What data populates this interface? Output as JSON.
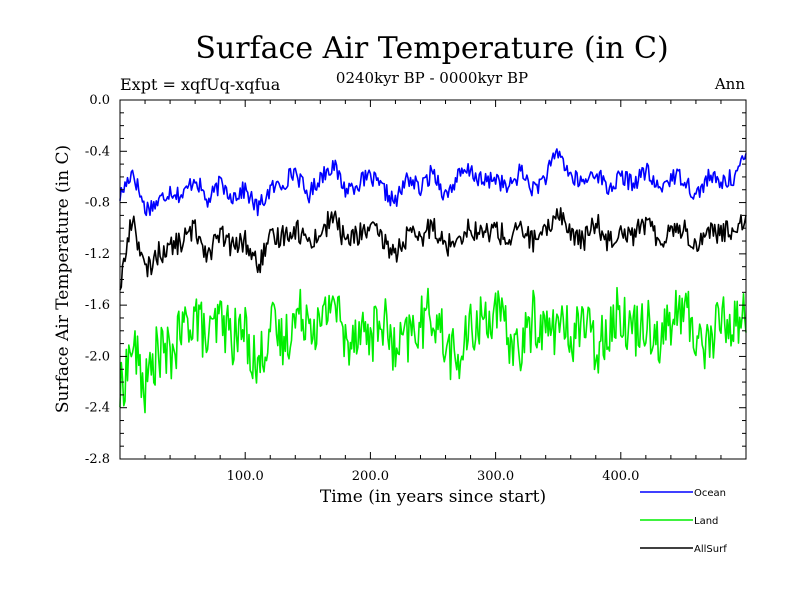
{
  "chart_data": {
    "type": "line",
    "title": "Surface Air Temperature (in C)",
    "subtitle": "0240kyr BP - 0000kyr BP",
    "experiment": "Expt = xqfUq-xqfua",
    "season": "Ann",
    "xlabel": "Time (in years since start)",
    "ylabel": "Surface Air Temperature (in C)",
    "xlim": [
      0,
      500
    ],
    "ylim": [
      -2.8,
      0.0
    ],
    "xticks": [
      100,
      200,
      300,
      400
    ],
    "xtick_labels": [
      "100.0",
      "200.0",
      "300.0",
      "400.0"
    ],
    "yticks": [
      0.0,
      -0.4,
      -0.8,
      -1.2,
      -1.6,
      -2.0,
      -2.4,
      -2.8
    ],
    "ytick_labels": [
      "0.0",
      "-0.4",
      "-0.8",
      "-1.2",
      "-1.6",
      "-2.0",
      "-2.4",
      "-2.8"
    ],
    "legend_position": "bottom-right, outside plot",
    "series": [
      {
        "name": "Ocean",
        "color": "#0000ff",
        "x": [
          0,
          10,
          20,
          30,
          40,
          50,
          60,
          70,
          80,
          90,
          100,
          110,
          120,
          130,
          140,
          150,
          160,
          170,
          180,
          190,
          200,
          210,
          220,
          230,
          240,
          250,
          260,
          270,
          280,
          290,
          300,
          310,
          320,
          330,
          340,
          350,
          360,
          370,
          380,
          390,
          400,
          410,
          420,
          430,
          440,
          450,
          460,
          470,
          480,
          490,
          500
        ],
        "values": [
          -0.75,
          -0.55,
          -0.85,
          -0.8,
          -0.7,
          -0.75,
          -0.6,
          -0.8,
          -0.65,
          -0.75,
          -0.7,
          -0.85,
          -0.7,
          -0.65,
          -0.55,
          -0.75,
          -0.6,
          -0.5,
          -0.7,
          -0.65,
          -0.6,
          -0.7,
          -0.8,
          -0.6,
          -0.7,
          -0.55,
          -0.75,
          -0.6,
          -0.55,
          -0.65,
          -0.6,
          -0.7,
          -0.55,
          -0.7,
          -0.6,
          -0.4,
          -0.6,
          -0.65,
          -0.55,
          -0.7,
          -0.6,
          -0.65,
          -0.55,
          -0.7,
          -0.6,
          -0.6,
          -0.75,
          -0.6,
          -0.65,
          -0.6,
          -0.45
        ]
      },
      {
        "name": "Land",
        "color": "#00ee00",
        "x": [
          0,
          10,
          20,
          30,
          40,
          50,
          60,
          70,
          80,
          90,
          100,
          110,
          120,
          130,
          140,
          150,
          160,
          170,
          180,
          190,
          200,
          210,
          220,
          230,
          240,
          250,
          260,
          270,
          280,
          290,
          300,
          310,
          320,
          330,
          340,
          350,
          360,
          370,
          380,
          390,
          400,
          410,
          420,
          430,
          440,
          450,
          460,
          470,
          480,
          490,
          500
        ],
        "values": [
          -2.3,
          -1.9,
          -2.25,
          -1.95,
          -2.0,
          -1.8,
          -1.65,
          -1.9,
          -1.7,
          -1.85,
          -1.8,
          -2.1,
          -1.75,
          -1.9,
          -1.7,
          -1.65,
          -1.8,
          -1.5,
          -1.9,
          -1.75,
          -1.85,
          -1.7,
          -2.0,
          -1.85,
          -1.75,
          -1.65,
          -1.9,
          -2.05,
          -1.8,
          -1.7,
          -1.65,
          -1.85,
          -1.95,
          -1.7,
          -1.8,
          -1.75,
          -1.85,
          -1.7,
          -1.95,
          -1.75,
          -1.65,
          -1.8,
          -1.7,
          -1.85,
          -1.75,
          -1.6,
          -1.85,
          -1.9,
          -1.7,
          -1.75,
          -1.65
        ]
      },
      {
        "name": "AllSurf",
        "color": "#000000",
        "x": [
          0,
          10,
          20,
          30,
          40,
          50,
          60,
          70,
          80,
          90,
          100,
          110,
          120,
          130,
          140,
          150,
          160,
          170,
          180,
          190,
          200,
          210,
          220,
          230,
          240,
          250,
          260,
          270,
          280,
          290,
          300,
          310,
          320,
          330,
          340,
          350,
          360,
          370,
          380,
          390,
          400,
          410,
          420,
          430,
          440,
          450,
          460,
          470,
          480,
          490,
          500
        ],
        "values": [
          -1.45,
          -0.9,
          -1.35,
          -1.2,
          -1.15,
          -1.1,
          -1.0,
          -1.2,
          -1.05,
          -1.15,
          -1.1,
          -1.3,
          -1.1,
          -1.05,
          -1.0,
          -1.1,
          -1.05,
          -0.9,
          -1.1,
          -1.05,
          -1.0,
          -1.1,
          -1.2,
          -1.05,
          -1.1,
          -0.95,
          -1.15,
          -1.05,
          -1.0,
          -1.05,
          -1.0,
          -1.1,
          -1.0,
          -1.1,
          -1.05,
          -0.85,
          -1.05,
          -1.1,
          -0.95,
          -1.1,
          -1.0,
          -1.05,
          -0.95,
          -1.1,
          -1.0,
          -1.0,
          -1.15,
          -1.0,
          -1.05,
          -1.0,
          -0.9
        ]
      }
    ]
  }
}
